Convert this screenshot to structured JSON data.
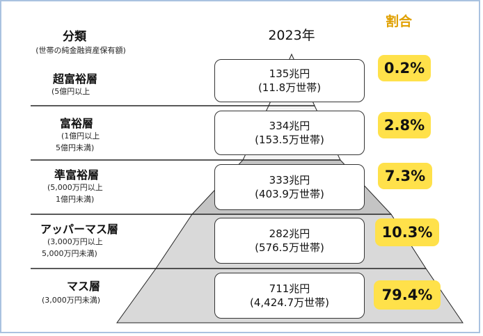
{
  "header": {
    "category_title": "分類",
    "category_subtitle": "(世帯の純金融資産保有額)",
    "year": "2023年",
    "ratio_title": "割合"
  },
  "tiers": [
    {
      "name": "超富裕層",
      "criteria": [
        "(5億円以上"
      ],
      "assets": "135兆円",
      "households": "(11.8万世帯)",
      "share": "0.2%"
    },
    {
      "name": "富裕層",
      "criteria": [
        "(1億円以上",
        "5億円未満)"
      ],
      "assets": "334兆円",
      "households": "(153.5万世帯)",
      "share": "2.8%"
    },
    {
      "name": "準富裕層",
      "criteria": [
        "(5,000万円以上",
        "1億円未満)"
      ],
      "assets": "333兆円",
      "households": "(403.9万世帯)",
      "share": "7.3%"
    },
    {
      "name": "アッパーマス層",
      "criteria": [
        "(3,000万円以上",
        "5,000万円未満)"
      ],
      "assets": "282兆円",
      "households": "(576.5万世帯)",
      "share": "10.3%"
    },
    {
      "name": "マス層",
      "criteria": [
        "(3,000万円未満)"
      ],
      "assets": "711兆円",
      "households": "(4,424.7万世帯)",
      "share": "79.4%"
    }
  ],
  "colors": {
    "pyramid_top": "#f4f4f4",
    "pyramid_mid": "#c4c4c4",
    "pyramid_bottom": "#d9d9d9",
    "badge": "#ffe14a",
    "ratio_header": "#e0a000",
    "frame": "#a9c2e0"
  }
}
